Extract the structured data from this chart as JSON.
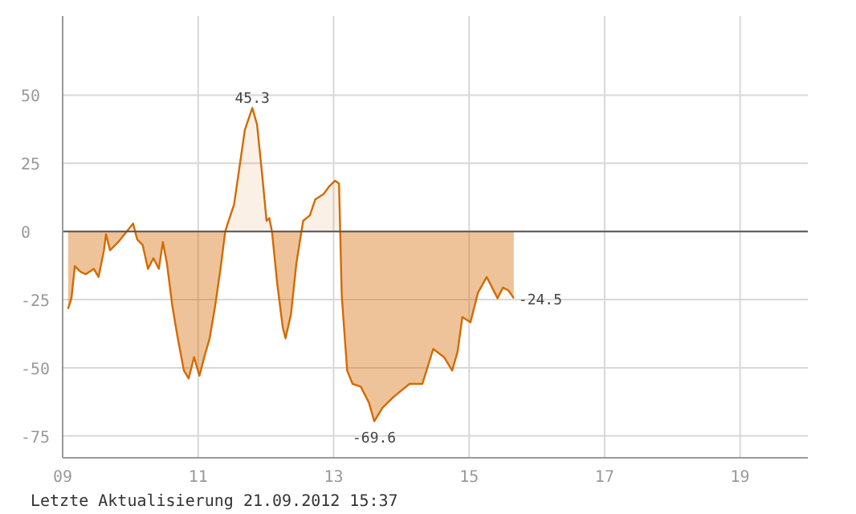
{
  "chart_data": {
    "type": "area",
    "xlim": [
      9,
      20
    ],
    "ylim": [
      -83,
      79
    ],
    "xticks": [
      {
        "value": 9,
        "label": "09"
      },
      11,
      13,
      15,
      17,
      19
    ],
    "yticks": [
      -75,
      -50,
      -25,
      0,
      25,
      50
    ],
    "grid": true,
    "ref_lines": [
      {
        "axis": "y",
        "value": 0,
        "color": "#555555"
      }
    ],
    "x": [
      9.08,
      9.13,
      9.18,
      9.26,
      9.34,
      9.46,
      9.53,
      9.61,
      9.64,
      9.7,
      9.82,
      9.98,
      10.04,
      10.1,
      10.18,
      10.26,
      10.34,
      10.42,
      10.48,
      10.54,
      10.62,
      10.7,
      10.79,
      10.86,
      10.94,
      11.02,
      11.09,
      11.17,
      11.25,
      11.33,
      11.4,
      11.45,
      11.53,
      11.61,
      11.69,
      11.8,
      11.87,
      11.95,
      12.01,
      12.05,
      12.09,
      12.17,
      12.25,
      12.29,
      12.37,
      12.45,
      12.55,
      12.65,
      12.73,
      12.85,
      12.94,
      13.02,
      13.08,
      13.12,
      13.2,
      13.28,
      13.4,
      13.52,
      13.6,
      13.72,
      13.88,
      14.12,
      14.31,
      14.47,
      14.63,
      14.75,
      14.83,
      14.9,
      15.02,
      15.13,
      15.26,
      15.42,
      15.5,
      15.58,
      15.66
    ],
    "series": [
      {
        "color": "#d46a00",
        "values": [
          -28.4,
          -24.5,
          -12.7,
          -14.7,
          -15.7,
          -13.7,
          -16.7,
          -6.9,
          -1,
          -6.9,
          -3.9,
          1,
          2.9,
          -2.9,
          -4.9,
          -13.7,
          -9.8,
          -13.7,
          -3.9,
          -11.8,
          -27.5,
          -39.2,
          -51,
          -53.9,
          -46.1,
          -52.9,
          -46.1,
          -39.2,
          -27.5,
          -13.7,
          0,
          3.9,
          9.8,
          23.5,
          37.3,
          45.3,
          39.2,
          19.6,
          3.9,
          4.9,
          0,
          -19.6,
          -35.3,
          -39.2,
          -30.4,
          -11.8,
          3.9,
          5.9,
          11.8,
          13.7,
          16.7,
          18.6,
          17.6,
          -23.5,
          -51,
          -55.9,
          -56.9,
          -62.7,
          -69.6,
          -64.7,
          -60.8,
          -55.9,
          -55.9,
          -43.1,
          -46.1,
          -51,
          -44.1,
          -31.4,
          -33.3,
          -22.5,
          -16.7,
          -24.5,
          -20.6,
          -21.6,
          -24.5
        ]
      }
    ],
    "annotations": [
      {
        "text": "45.3",
        "x": 11.8,
        "y": 45.3
      },
      {
        "text": "-69.6",
        "x": 13.6,
        "y": -69.6
      },
      {
        "text": "-24.5",
        "x": 15.66,
        "y": -24.5
      },
      "Letzte Aktualisierung 21.09.2012 15:37"
    ]
  }
}
